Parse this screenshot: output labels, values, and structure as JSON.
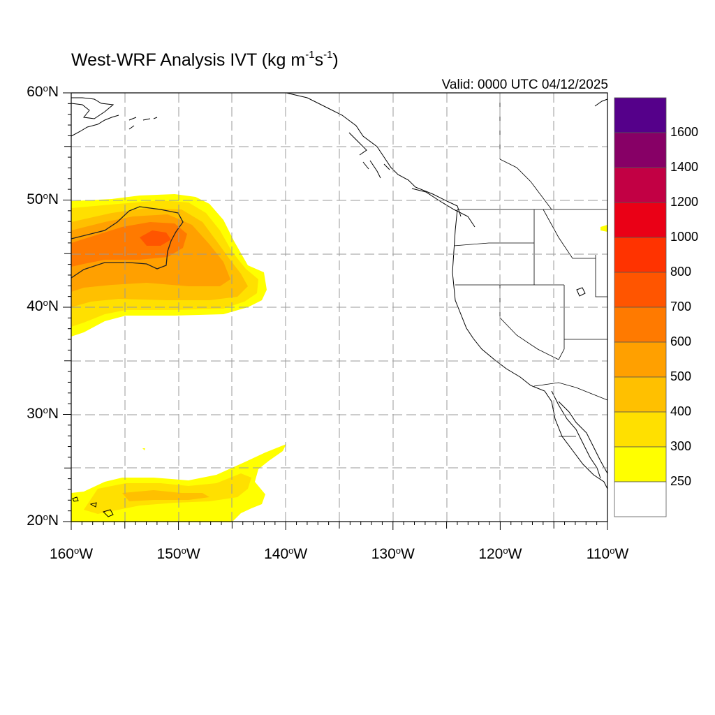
{
  "title": {
    "main": "West-WRF Analysis IVT (kg m",
    "exp1": "-1",
    "mid": "s",
    "exp2": "-1",
    "close": ")"
  },
  "valid_label": "Valid: 0000 UTC 04/12/2025",
  "axes": {
    "lat_labels": [
      {
        "num": "60",
        "deg": "o",
        "hem": "N"
      },
      {
        "num": "50",
        "deg": "o",
        "hem": "N"
      },
      {
        "num": "40",
        "deg": "o",
        "hem": "N"
      },
      {
        "num": "30",
        "deg": "o",
        "hem": "N"
      },
      {
        "num": "20",
        "deg": "o",
        "hem": "N"
      }
    ],
    "lon_labels": [
      {
        "num": "160",
        "deg": "o",
        "hem": "W"
      },
      {
        "num": "150",
        "deg": "o",
        "hem": "W"
      },
      {
        "num": "140",
        "deg": "o",
        "hem": "W"
      },
      {
        "num": "130",
        "deg": "o",
        "hem": "W"
      },
      {
        "num": "120",
        "deg": "o",
        "hem": "W"
      },
      {
        "num": "110",
        "deg": "o",
        "hem": "W"
      }
    ],
    "lat_range": [
      20,
      60
    ],
    "lon_range": [
      -160,
      -110
    ],
    "grid_spacing_deg": 5,
    "gridlines": "dashed"
  },
  "colorbar": {
    "labels": [
      "1600",
      "1400",
      "1200",
      "1000",
      "800",
      "700",
      "600",
      "500",
      "400",
      "300",
      "250"
    ],
    "colors_top_to_bottom": [
      "#55008a",
      "#870066",
      "#c20044",
      "#ea0016",
      "#ff3300",
      "#ff5500",
      "#ff7a00",
      "#ffa000",
      "#ffc000",
      "#ffe000",
      "#ffff00",
      "#ffffff"
    ],
    "units": "kg m-1 s-1"
  },
  "ivt_fields": {
    "colors": {
      "c250": "#ffff00",
      "c300": "#ffe000",
      "c400": "#ffc000",
      "c500": "#ffa000",
      "c600": "#ff7a00",
      "c700": "#ff5500"
    },
    "north_pacific_max_band": "700",
    "subtropical_max_band": "400"
  }
}
